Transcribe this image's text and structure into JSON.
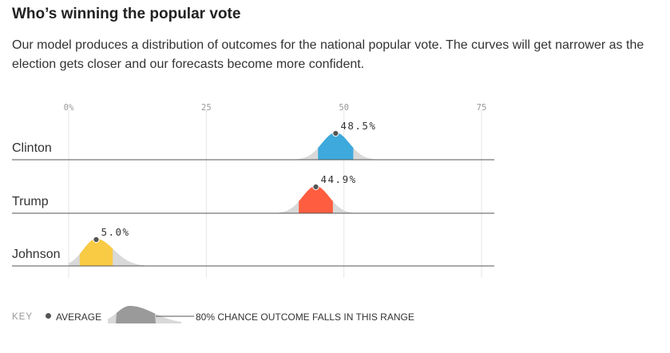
{
  "header": {
    "title": "Who’s winning the popular vote",
    "description": "Our model produces a distribution of outcomes for the national popular vote. The curves will get narrower as the election gets closer and our forecasts become more confident."
  },
  "chart_data": {
    "type": "area",
    "title": "Who’s winning the popular vote",
    "x_axis": {
      "ticks": [
        "0%",
        "25",
        "50",
        "75"
      ],
      "tick_values": [
        0,
        25,
        50,
        75
      ],
      "range": [
        0,
        77
      ],
      "grid": true
    },
    "series": [
      {
        "name": "Clinton",
        "average": 48.5,
        "average_label": "48.5%",
        "range_80": [
          45.3,
          51.7
        ],
        "color": "#3da9dc"
      },
      {
        "name": "Trump",
        "average": 44.9,
        "average_label": "44.9%",
        "range_80": [
          41.8,
          48.0
        ],
        "color": "#ff5d40"
      },
      {
        "name": "Johnson",
        "average": 5.0,
        "average_label": "5.0%",
        "range_80": [
          2.0,
          8.0
        ],
        "color": "#f9ca43"
      }
    ]
  },
  "key": {
    "title": "KEY",
    "average_label": "AVERAGE",
    "range_label": "80% CHANCE OUTCOME FALLS IN THIS RANGE"
  },
  "colors": {
    "tail": "#d9d9d9",
    "axis_line": "#555555",
    "grid": "#e6e6e6",
    "dot": "#555555",
    "key_range": "#9a9a9a"
  }
}
